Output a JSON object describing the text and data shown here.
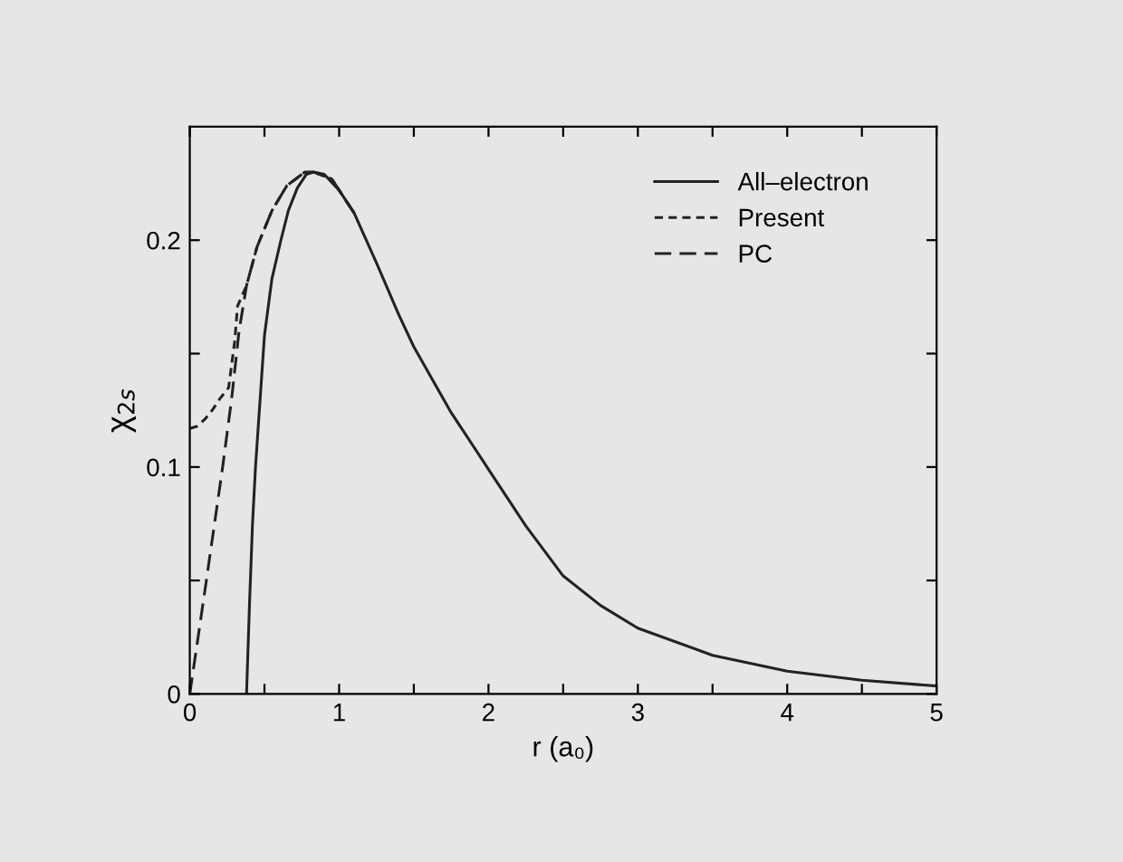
{
  "chart_data": {
    "type": "line",
    "xlabel": "r (a₀)",
    "ylabel": "χ$_{2s}$",
    "xlim": [
      0,
      5
    ],
    "ylim": [
      0,
      0.25
    ],
    "xticks": [
      0,
      {
        "value": 0.5,
        "label": null
      },
      1,
      {
        "value": 1.5,
        "label": null
      },
      2,
      {
        "value": 2.5,
        "label": null
      },
      3,
      {
        "value": 3.5,
        "label": null
      },
      4,
      {
        "value": 4.5,
        "label": null
      },
      5
    ],
    "yticks": [
      0,
      {
        "value": 0.05,
        "label": null
      },
      0.1,
      {
        "value": 0.15,
        "label": null
      },
      0.2
    ],
    "grid": false,
    "legend": "top right",
    "marker": "none",
    "series": [
      {
        "name": "All–electron",
        "color": "#222222",
        "line_style": "solid",
        "x": [
          0.38,
          0.4,
          0.42,
          0.44,
          0.5,
          0.55,
          0.61,
          0.66,
          0.72,
          0.78,
          0.83,
          0.9,
          1,
          1.1,
          1.25,
          1.4,
          1.5,
          1.75,
          2,
          2.25,
          2.5,
          2.75,
          3,
          3.5,
          4,
          4.5,
          5
        ],
        "values": [
          0,
          0.04,
          0.075,
          0.1,
          0.158,
          0.183,
          0.2,
          0.213,
          0.223,
          0.229,
          0.23,
          0.229,
          0.222,
          0.212,
          0.19,
          0.167,
          0.153,
          0.124,
          0.099,
          0.074,
          0.052,
          0.039,
          0.029,
          0.017,
          0.01,
          0.006,
          0.0035
        ]
      },
      {
        "name": "Present",
        "color": "#222222",
        "line_style": "dashed",
        "x": [
          0,
          0.05,
          0.1,
          0.15,
          0.2,
          0.26,
          0.3,
          0.32,
          0.38,
          0.45,
          0.55,
          0.65,
          0.77,
          0.83,
          0.95,
          1.1
        ],
        "values": [
          0.117,
          0.118,
          0.121,
          0.125,
          0.13,
          0.135,
          0.155,
          0.171,
          0.18,
          0.197,
          0.213,
          0.224,
          0.23,
          0.23,
          0.227,
          0.212
        ]
      },
      {
        "name": "PC",
        "color": "#222222",
        "line_style": "longdash",
        "x": [
          0,
          0.1,
          0.22,
          0.28,
          0.33,
          0.38,
          0.45,
          0.55,
          0.65,
          0.77,
          0.83,
          0.95,
          1.1
        ],
        "values": [
          0,
          0.045,
          0.1,
          0.13,
          0.16,
          0.18,
          0.197,
          0.213,
          0.224,
          0.23,
          0.23,
          0.227,
          0.212
        ]
      }
    ]
  }
}
